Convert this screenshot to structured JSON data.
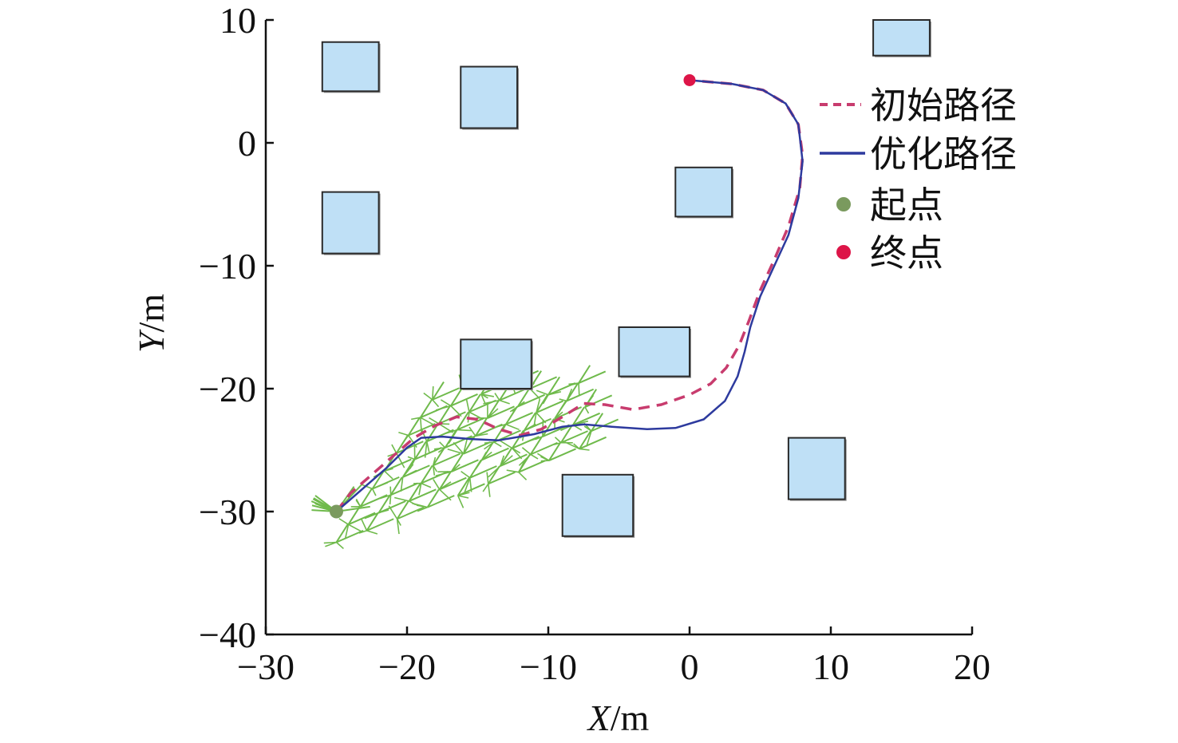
{
  "chart_data": {
    "type": "scatter",
    "xlabel": {
      "var": "X",
      "unit": "/m"
    },
    "ylabel": {
      "var": "Y",
      "unit": "/m"
    },
    "xlim": [
      -30,
      20
    ],
    "ylim": [
      -40,
      10
    ],
    "xticks": [
      -30,
      -20,
      -10,
      0,
      10,
      20
    ],
    "yticks": [
      10,
      0,
      -10,
      -20,
      -30,
      -40
    ],
    "xtick_labels": [
      "−30",
      "−20",
      "−10",
      "0",
      "10",
      "20"
    ],
    "ytick_labels": [
      "10",
      "0",
      "−10",
      "−20",
      "−30",
      "−40"
    ],
    "grid": false,
    "legend_position": "right",
    "obstacles": [
      {
        "x": [
          -26,
          -22
        ],
        "y": [
          4.2,
          8.2
        ]
      },
      {
        "x": [
          -16.2,
          -12.2
        ],
        "y": [
          1.2,
          6.2
        ]
      },
      {
        "x": [
          -26,
          -22
        ],
        "y": [
          -9,
          -4
        ]
      },
      {
        "x": [
          -1,
          3
        ],
        "y": [
          -6,
          -2
        ]
      },
      {
        "x": [
          -16.2,
          -11.2
        ],
        "y": [
          -20,
          -16
        ]
      },
      {
        "x": [
          -5,
          0
        ],
        "y": [
          -19,
          -15
        ]
      },
      {
        "x": [
          -9,
          -4
        ],
        "y": [
          -32,
          -27
        ]
      },
      {
        "x": [
          7,
          11
        ],
        "y": [
          -29,
          -24
        ]
      },
      {
        "x": [
          13,
          17
        ],
        "y": [
          7.1,
          10
        ]
      }
    ],
    "series": [
      {
        "name": "初始路径",
        "style": "dashed",
        "color": "#c83c6e",
        "points": [
          [
            -25,
            -30
          ],
          [
            -24,
            -28.5
          ],
          [
            -22.5,
            -27
          ],
          [
            -21,
            -25.5
          ],
          [
            -19.5,
            -24
          ],
          [
            -18,
            -23
          ],
          [
            -16.5,
            -22.3
          ],
          [
            -15,
            -22.5
          ],
          [
            -13.5,
            -23.3
          ],
          [
            -12,
            -23.8
          ],
          [
            -10.5,
            -23.3
          ],
          [
            -9,
            -22.3
          ],
          [
            -7.5,
            -21.2
          ],
          [
            -6,
            -21.3
          ],
          [
            -4,
            -21.7
          ],
          [
            -2,
            -21.3
          ],
          [
            0,
            -20.5
          ],
          [
            1.5,
            -19.6
          ],
          [
            2.6,
            -18.3
          ],
          [
            3.5,
            -16.5
          ],
          [
            4.2,
            -14.5
          ],
          [
            5,
            -12
          ],
          [
            6,
            -9.5
          ],
          [
            7,
            -6.8
          ],
          [
            7.8,
            -3.7
          ],
          [
            8,
            -1
          ],
          [
            7.7,
            1.5
          ],
          [
            6.8,
            3.2
          ],
          [
            5.2,
            4.3
          ],
          [
            3,
            4.8
          ],
          [
            1,
            5
          ],
          [
            0,
            5.1
          ]
        ]
      },
      {
        "name": "优化路径",
        "style": "solid",
        "color": "#2d3a9e",
        "points": [
          [
            -25,
            -30
          ],
          [
            -23.5,
            -28.5
          ],
          [
            -21.5,
            -26.5
          ],
          [
            -20,
            -24.8
          ],
          [
            -19,
            -24
          ],
          [
            -17.5,
            -23.9
          ],
          [
            -15.5,
            -24.1
          ],
          [
            -13.5,
            -24.2
          ],
          [
            -11,
            -23.7
          ],
          [
            -9,
            -23.1
          ],
          [
            -7.5,
            -22.9
          ],
          [
            -5.5,
            -23.1
          ],
          [
            -3,
            -23.3
          ],
          [
            -1,
            -23.2
          ],
          [
            1,
            -22.5
          ],
          [
            2.5,
            -21
          ],
          [
            3.4,
            -19
          ],
          [
            3.9,
            -17
          ],
          [
            4.3,
            -15
          ],
          [
            5,
            -12.5
          ],
          [
            6,
            -10
          ],
          [
            7,
            -7.5
          ],
          [
            7.7,
            -4.5
          ],
          [
            8,
            -1.5
          ],
          [
            7.7,
            1.5
          ],
          [
            6.8,
            3.2
          ],
          [
            5.2,
            4.3
          ],
          [
            3,
            4.8
          ],
          [
            1,
            5
          ],
          [
            0,
            5.1
          ]
        ]
      }
    ],
    "start_point": {
      "name": "起点",
      "x": -25,
      "y": -30,
      "color": "#7a9a5e"
    },
    "end_point": {
      "name": "终点",
      "x": 0,
      "y": 5.1,
      "color": "#dd1548"
    },
    "tree_exploration_region": {
      "color": "#6fba4b",
      "x_range": [
        -26,
        -6.5
      ],
      "y_range": [
        -33,
        -19
      ]
    }
  }
}
